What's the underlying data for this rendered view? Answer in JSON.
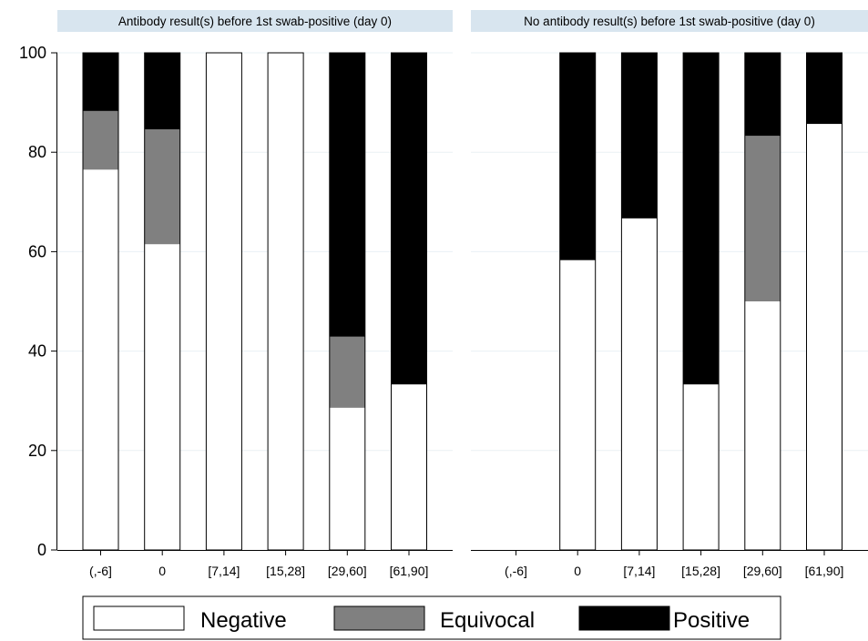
{
  "chart_data": {
    "type": "bar",
    "stacked": true,
    "ylim": [
      0,
      100
    ],
    "yticks": [
      0,
      20,
      40,
      60,
      80,
      100
    ],
    "grid": true,
    "legend_position": "bottom",
    "categories": [
      "(,-6]",
      "0",
      "[7,14]",
      "[15,28]",
      "[29,60]",
      "[61,90]"
    ],
    "series": [
      {
        "name": "Negative",
        "color": "#ffffff"
      },
      {
        "name": "Equivocal",
        "color": "#808080"
      },
      {
        "name": "Positive",
        "color": "#000000"
      }
    ],
    "panels": [
      {
        "title": "Antibody result(s) before 1st swab-positive (day 0)",
        "values": [
          [
            76.5,
            11.8,
            11.7
          ],
          [
            61.5,
            23.1,
            15.4
          ],
          [
            100,
            0,
            0
          ],
          [
            100,
            0,
            0
          ],
          [
            28.6,
            14.3,
            57.1
          ],
          [
            33.3,
            0,
            66.7
          ]
        ]
      },
      {
        "title": "No antibody result(s) before 1st swab-positive (day 0)",
        "values": [
          null,
          [
            58.3,
            0,
            41.7
          ],
          [
            66.7,
            0,
            33.3
          ],
          [
            33.3,
            0,
            66.7
          ],
          [
            50,
            33.3,
            16.7
          ],
          [
            85.7,
            0,
            14.3
          ]
        ]
      }
    ]
  }
}
